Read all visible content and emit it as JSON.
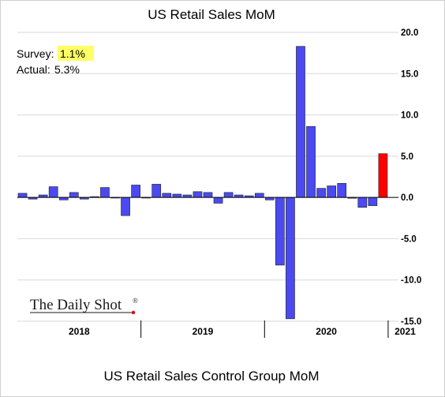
{
  "chart_data": {
    "type": "bar",
    "title": "US Retail Sales MoM",
    "xlabel": "US Retail Sales Control Group MoM",
    "ylabel": "",
    "ylim": [
      -15,
      20
    ],
    "y_ticks": [
      "20.0",
      "15.0",
      "10.0",
      "5.0",
      "0.0",
      "-5.0",
      "-10.0",
      "-15.0"
    ],
    "y_tick_values": [
      20,
      15,
      10,
      5,
      0,
      -5,
      -10,
      -15
    ],
    "year_labels": [
      "2018",
      "2019",
      "2020",
      "2021"
    ],
    "grid": true,
    "colors": {
      "bar": "#4a4af0",
      "highlight": "#ff0000",
      "survey_highlight": "#ffff66",
      "grid": "#d9d9d9"
    },
    "x": [
      "2018-01",
      "2018-02",
      "2018-03",
      "2018-04",
      "2018-05",
      "2018-06",
      "2018-07",
      "2018-08",
      "2018-09",
      "2018-10",
      "2018-11",
      "2018-12",
      "2019-01",
      "2019-02",
      "2019-03",
      "2019-04",
      "2019-05",
      "2019-06",
      "2019-07",
      "2019-08",
      "2019-09",
      "2019-10",
      "2019-11",
      "2019-12",
      "2020-01",
      "2020-02",
      "2020-03",
      "2020-04",
      "2020-05",
      "2020-06",
      "2020-07",
      "2020-08",
      "2020-09",
      "2020-10",
      "2020-11",
      "2020-12",
      "2021-01"
    ],
    "values": [
      0.5,
      -0.2,
      0.3,
      1.3,
      -0.3,
      0.6,
      -0.2,
      0.1,
      1.2,
      0.0,
      -2.2,
      1.5,
      0.0,
      1.6,
      0.5,
      0.4,
      0.3,
      0.7,
      0.6,
      -0.7,
      0.6,
      0.3,
      0.2,
      0.5,
      -0.3,
      -8.2,
      -14.7,
      18.3,
      8.6,
      1.1,
      1.4,
      1.7,
      -0.1,
      -1.2,
      -1.0,
      5.3,
      null
    ],
    "highlight_index": 35
  },
  "annotation": {
    "survey_label": "Survey:",
    "survey_value": "1.1%",
    "actual_label": "Actual:",
    "actual_value": "5.3%"
  },
  "logo": {
    "text": "The Daily Shot",
    "mark": "®"
  }
}
